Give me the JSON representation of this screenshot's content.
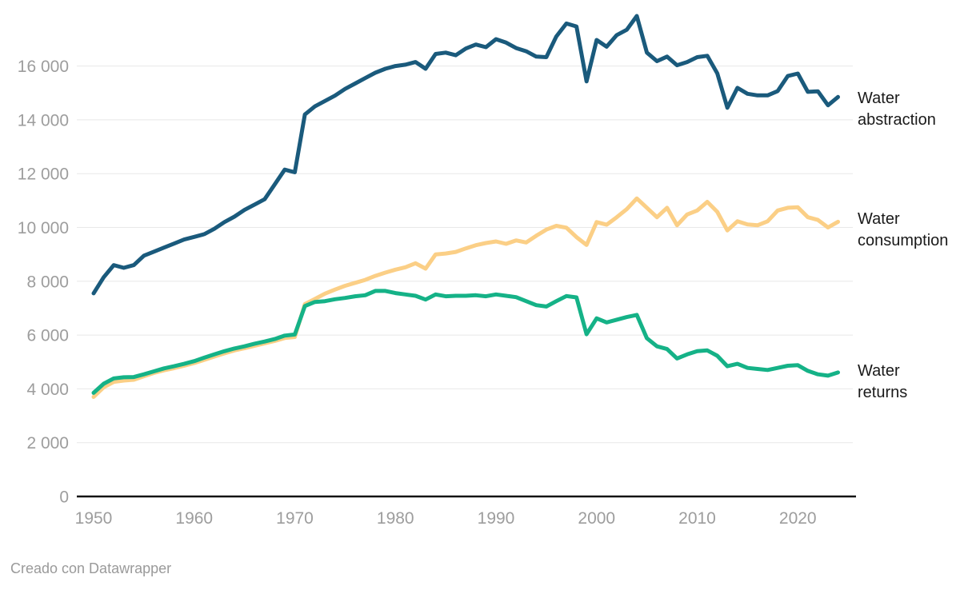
{
  "chart": {
    "footer_credit": "Creado con Datawrapper",
    "series_labels": [
      {
        "line1": "Water",
        "line2": "abstraction"
      },
      {
        "line1": "Water",
        "line2": "consumption"
      },
      {
        "line1": "Water",
        "line2": "returns"
      }
    ],
    "colors": {
      "background": "#ffffff",
      "grid": "#e8e8e8",
      "axis_line": "#141414",
      "tick_label": "#9d9d9d",
      "series_label_text": "#1a1a1a"
    }
  },
  "chart_data": {
    "type": "line",
    "title": "",
    "xlabel": "",
    "ylabel": "",
    "xlim": [
      1950,
      2024
    ],
    "ylim": [
      0,
      18000
    ],
    "grid": "horizontal",
    "legend_position": "direct-labels-right",
    "x_ticks": [
      {
        "value": 1950,
        "label": "1950"
      },
      {
        "value": 1960,
        "label": "1960"
      },
      {
        "value": 1970,
        "label": "1970"
      },
      {
        "value": 1980,
        "label": "1980"
      },
      {
        "value": 1990,
        "label": "1990"
      },
      {
        "value": 2000,
        "label": "2000"
      },
      {
        "value": 2010,
        "label": "2010"
      },
      {
        "value": 2020,
        "label": "2020"
      }
    ],
    "y_ticks": [
      {
        "value": 0,
        "label": "0"
      },
      {
        "value": 2000,
        "label": "2 000"
      },
      {
        "value": 4000,
        "label": "4 000"
      },
      {
        "value": 6000,
        "label": "6 000"
      },
      {
        "value": 8000,
        "label": "8 000"
      },
      {
        "value": 10000,
        "label": "10 000"
      },
      {
        "value": 12000,
        "label": "12 000"
      },
      {
        "value": 14000,
        "label": "14 000"
      },
      {
        "value": 16000,
        "label": "16 000"
      }
    ],
    "x": [
      1950,
      1951,
      1952,
      1953,
      1954,
      1955,
      1956,
      1957,
      1958,
      1959,
      1960,
      1961,
      1962,
      1963,
      1964,
      1965,
      1966,
      1967,
      1968,
      1969,
      1970,
      1971,
      1972,
      1973,
      1974,
      1975,
      1976,
      1977,
      1978,
      1979,
      1980,
      1981,
      1982,
      1983,
      1984,
      1985,
      1986,
      1987,
      1988,
      1989,
      1990,
      1991,
      1992,
      1993,
      1994,
      1995,
      1996,
      1997,
      1998,
      1999,
      2000,
      2001,
      2002,
      2003,
      2004,
      2005,
      2006,
      2007,
      2008,
      2009,
      2010,
      2011,
      2012,
      2013,
      2014,
      2015,
      2016,
      2017,
      2018,
      2019,
      2020,
      2021,
      2022,
      2023,
      2024
    ],
    "series": [
      {
        "name": "Water abstraction",
        "color": "#1a5a7c",
        "label_lines": [
          "Water",
          "abstraction"
        ],
        "values": [
          7550,
          8150,
          8600,
          8500,
          8600,
          8950,
          9100,
          9250,
          9400,
          9550,
          9650,
          9750,
          9950,
          10200,
          10400,
          10650,
          10850,
          11050,
          11600,
          12150,
          12050,
          14200,
          14500,
          14700,
          14900,
          15150,
          15350,
          15550,
          15750,
          15900,
          16000,
          16050,
          16150,
          15900,
          16450,
          16500,
          16400,
          16650,
          16800,
          16700,
          17000,
          16870,
          16670,
          16550,
          16350,
          16330,
          17100,
          17580,
          17470,
          15430,
          16970,
          16720,
          17150,
          17350,
          17860,
          16500,
          16180,
          16350,
          16030,
          16150,
          16330,
          16380,
          15730,
          14450,
          15190,
          14970,
          14910,
          14910,
          15070,
          15630,
          15720,
          15040,
          15060,
          14540,
          14850
        ]
      },
      {
        "name": "Water consumption",
        "color": "#fbcf86",
        "label_lines": [
          "Water",
          "consumption"
        ],
        "values": [
          3700,
          4060,
          4260,
          4310,
          4340,
          4470,
          4590,
          4690,
          4770,
          4860,
          4960,
          5080,
          5200,
          5320,
          5430,
          5510,
          5600,
          5690,
          5780,
          5890,
          5930,
          7150,
          7340,
          7540,
          7690,
          7830,
          7940,
          8050,
          8200,
          8320,
          8430,
          8520,
          8670,
          8470,
          9000,
          9030,
          9090,
          9220,
          9340,
          9420,
          9480,
          9390,
          9520,
          9440,
          9690,
          9920,
          10060,
          9990,
          9640,
          9350,
          10200,
          10100,
          10380,
          10680,
          11080,
          10730,
          10380,
          10730,
          10080,
          10480,
          10630,
          10950,
          10580,
          9890,
          10230,
          10110,
          10080,
          10230,
          10630,
          10730,
          10750,
          10380,
          10280,
          10000,
          10210
        ]
      },
      {
        "name": "Water returns",
        "color": "#15b287",
        "label_lines": [
          "Water",
          "returns"
        ],
        "values": [
          3850,
          4190,
          4390,
          4430,
          4440,
          4540,
          4650,
          4760,
          4840,
          4930,
          5030,
          5160,
          5280,
          5400,
          5500,
          5580,
          5680,
          5760,
          5850,
          5980,
          6020,
          7080,
          7230,
          7260,
          7330,
          7380,
          7440,
          7480,
          7640,
          7640,
          7560,
          7510,
          7460,
          7320,
          7510,
          7440,
          7460,
          7460,
          7480,
          7440,
          7510,
          7460,
          7410,
          7260,
          7110,
          7060,
          7260,
          7450,
          7400,
          6030,
          6620,
          6470,
          6570,
          6670,
          6750,
          5880,
          5580,
          5480,
          5130,
          5280,
          5400,
          5430,
          5230,
          4840,
          4930,
          4780,
          4740,
          4700,
          4780,
          4860,
          4880,
          4670,
          4540,
          4490,
          4610
        ]
      }
    ]
  }
}
